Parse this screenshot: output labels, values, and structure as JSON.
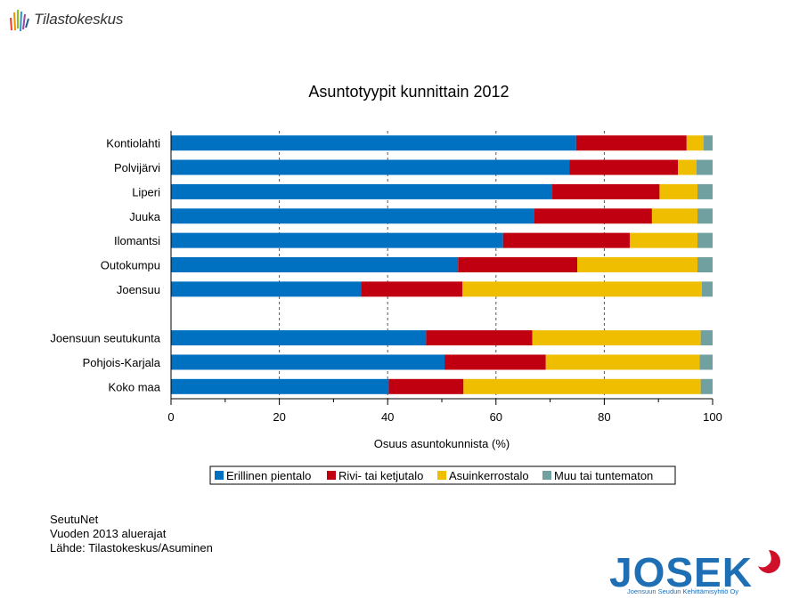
{
  "brand": {
    "top_logo": "Tilastokeskus",
    "bottom_logo": "JOSEK",
    "bottom_logo_sub": "Joensuun Seudun Kehittämisyhtiö Oy"
  },
  "footer": {
    "line1": "SeutuNet",
    "line2": "Vuoden 2013 aluerajat",
    "line3": "Lähde: Tilastokeskus/Asuminen"
  },
  "colors": {
    "Erillinen pientalo": "#0070c0",
    "Rivi- tai ketjutalo": "#c00010",
    "Asuinkerrostalo": "#f0be00",
    "Muu tai tuntematon": "#70a0a0"
  },
  "chart_data": {
    "type": "bar",
    "orientation": "horizontal",
    "stacked": true,
    "title": "Asuntotyypit kunnittain 2012",
    "xlabel": "Osuus asuntokunnista (%)",
    "ylabel": "",
    "xlim": [
      0,
      100
    ],
    "xticks": [
      0,
      20,
      40,
      60,
      80,
      100
    ],
    "grid": "vertical dashed",
    "legend": "bottom",
    "categories": [
      "Kontiolahti",
      "Polvijärvi",
      "Liperi",
      "Juuka",
      "Ilomantsi",
      "Outokumpu",
      "Joensuu",
      "",
      "Joensuun seutukunta",
      "Pohjois-Karjala",
      "Koko maa"
    ],
    "series": [
      {
        "name": "Erillinen pientalo",
        "values": [
          74.8,
          73.6,
          70.4,
          67.1,
          61.3,
          53.0,
          35.1,
          null,
          47.1,
          50.5,
          40.2
        ]
      },
      {
        "name": "Rivi- tai ketjutalo",
        "values": [
          20.4,
          20.0,
          19.8,
          21.7,
          23.4,
          22.0,
          18.7,
          null,
          19.6,
          18.7,
          13.8
        ]
      },
      {
        "name": "Asuinkerrostalo",
        "values": [
          3.1,
          3.4,
          7.0,
          8.4,
          12.5,
          22.2,
          44.2,
          null,
          31.1,
          28.4,
          43.8
        ]
      },
      {
        "name": "Muu tai tuntematon",
        "values": [
          1.7,
          3.0,
          2.8,
          2.8,
          2.8,
          2.8,
          2.0,
          null,
          2.2,
          2.4,
          2.2
        ]
      }
    ]
  }
}
